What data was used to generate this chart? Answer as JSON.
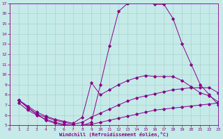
{
  "bg_color": "#c5eae8",
  "grid_color": "#9ecece",
  "line_color": "#880088",
  "xlabel": "Windchill (Refroidissement éolien,°C)",
  "xlim": [
    0,
    23
  ],
  "ylim": [
    5,
    17
  ],
  "yticks": [
    5,
    6,
    7,
    8,
    9,
    10,
    11,
    12,
    13,
    14,
    15,
    16,
    17
  ],
  "xticks": [
    0,
    1,
    2,
    3,
    4,
    5,
    6,
    7,
    8,
    9,
    10,
    11,
    12,
    13,
    14,
    15,
    16,
    17,
    18,
    19,
    20,
    21,
    22,
    23
  ],
  "curve_a_x": [
    1,
    2,
    3,
    4,
    5,
    6,
    7,
    8,
    9,
    10,
    11,
    12,
    13,
    14,
    15,
    16,
    17,
    18,
    19,
    20,
    21,
    22,
    23
  ],
  "curve_a_y": [
    7.2,
    6.5,
    6.0,
    5.6,
    5.3,
    5.1,
    5.0,
    5.0,
    5.1,
    5.3,
    5.5,
    5.7,
    5.9,
    6.1,
    6.3,
    6.5,
    6.6,
    6.7,
    6.8,
    6.9,
    7.0,
    7.1,
    7.2
  ],
  "curve_b_x": [
    1,
    2,
    3,
    4,
    5,
    6,
    7,
    8,
    9,
    10,
    11,
    12,
    13,
    14,
    15,
    16,
    17,
    18,
    19,
    20,
    21,
    22,
    23
  ],
  "curve_b_y": [
    7.5,
    6.7,
    6.1,
    5.8,
    5.5,
    5.3,
    5.1,
    5.3,
    5.8,
    6.2,
    6.6,
    7.0,
    7.4,
    7.7,
    7.9,
    8.1,
    8.3,
    8.5,
    8.6,
    8.7,
    8.7,
    8.7,
    8.2
  ],
  "curve_c_x": [
    1,
    2,
    3,
    4,
    5,
    6,
    7,
    8,
    9,
    10,
    11,
    12,
    13,
    14,
    15,
    16,
    17,
    18,
    19,
    20,
    21,
    22,
    23
  ],
  "curve_c_y": [
    7.5,
    6.9,
    6.3,
    5.9,
    5.6,
    5.4,
    5.2,
    5.8,
    9.2,
    8.0,
    8.5,
    9.0,
    9.4,
    9.7,
    9.9,
    9.8,
    9.8,
    9.8,
    9.4,
    8.8,
    8.2,
    7.9,
    7.3
  ],
  "curve_d_x": [
    1,
    3,
    4,
    5,
    6,
    7,
    8,
    9,
    10,
    11,
    12,
    13,
    14,
    15,
    16,
    17,
    18,
    19,
    20,
    21,
    22,
    23
  ],
  "curve_d_y": [
    7.5,
    6.1,
    5.5,
    5.2,
    5.0,
    4.9,
    5.0,
    5.3,
    9.0,
    12.8,
    16.2,
    17.0,
    17.2,
    17.2,
    16.9,
    16.9,
    15.5,
    13.0,
    11.0,
    9.0,
    8.0,
    7.0
  ]
}
